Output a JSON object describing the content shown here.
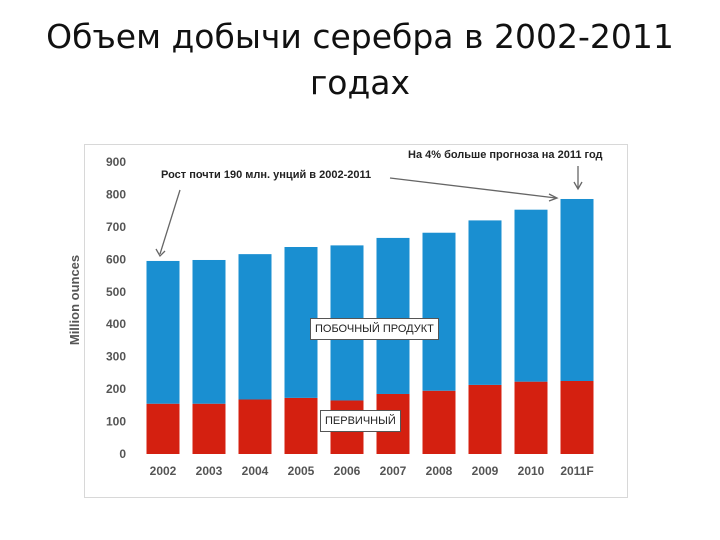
{
  "title_line1": "Объем добычи серебра в 2002-2011",
  "title_line2": "годах",
  "annotations": {
    "left": "Рост почти 190 млн. унций в 2002-2011",
    "right": "На 4% больше прогноза на 2011 год"
  },
  "colors": {
    "byproduct": "#1a8fd1",
    "primary": "#d42010",
    "axis_text": "#555555"
  },
  "chart_data": {
    "type": "bar",
    "stacked": true,
    "categories": [
      "2002",
      "2003",
      "2004",
      "2005",
      "2006",
      "2007",
      "2008",
      "2009",
      "2010",
      "2011F"
    ],
    "series": [
      {
        "name": "ПЕРВИЧНЫЙ",
        "values": [
          155,
          155,
          168,
          173,
          165,
          185,
          195,
          213,
          223,
          225
        ]
      },
      {
        "name": "ПОБОЧНЫЙ ПРОДУКТ",
        "values": [
          440,
          443,
          448,
          465,
          478,
          481,
          487,
          507,
          530,
          561
        ]
      }
    ],
    "ylabel": "Million ounces",
    "ylim": [
      0,
      900
    ],
    "yticks": [
      0,
      100,
      200,
      300,
      400,
      500,
      600,
      700,
      800,
      900
    ]
  }
}
